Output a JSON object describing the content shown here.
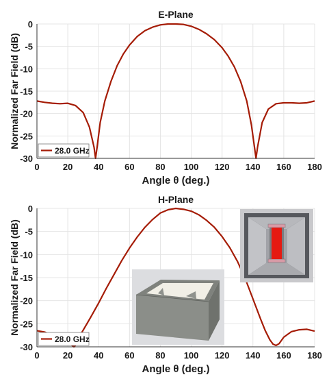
{
  "chart_data": [
    {
      "type": "line",
      "title": "E-Plane",
      "xlabel": "Angle θ (deg.)",
      "ylabel": "Normalized Far Field (dB)",
      "xlim": [
        0,
        180
      ],
      "ylim": [
        -30,
        0
      ],
      "xticks": [
        0,
        20,
        40,
        60,
        80,
        100,
        120,
        140,
        160,
        180
      ],
      "yticks": [
        0,
        -5,
        -10,
        -15,
        -20,
        -25,
        -30
      ],
      "grid": true,
      "legend": "bottom-left",
      "series": [
        {
          "name": "28.0 GHz",
          "color": "#a51c06",
          "x": [
            0,
            5,
            10,
            15,
            20,
            25,
            30,
            34,
            37,
            38,
            39,
            41,
            44,
            48,
            52,
            56,
            60,
            65,
            70,
            75,
            80,
            85,
            90,
            95,
            100,
            105,
            110,
            115,
            120,
            124,
            128,
            132,
            136,
            139,
            141,
            142,
            143,
            146,
            150,
            155,
            160,
            165,
            170,
            175,
            180
          ],
          "y": [
            -17.2,
            -17.5,
            -17.7,
            -17.8,
            -17.7,
            -18.2,
            -19.8,
            -23,
            -27.5,
            -30,
            -27.5,
            -22,
            -17.2,
            -12.8,
            -9.3,
            -6.7,
            -4.7,
            -2.8,
            -1.5,
            -0.7,
            -0.2,
            0,
            0,
            -0.1,
            -0.5,
            -1.2,
            -2.2,
            -3.5,
            -5.3,
            -7.2,
            -9.6,
            -12.8,
            -17.2,
            -22.5,
            -27.5,
            -30,
            -27.5,
            -22,
            -19,
            -17.8,
            -17.6,
            -17.6,
            -17.7,
            -17.6,
            -17.2
          ]
        }
      ]
    },
    {
      "type": "line",
      "title": "H-Plane",
      "xlabel": "Angle θ (deg.)",
      "ylabel": "Normalized Far Field (dB)",
      "xlim": [
        0,
        180
      ],
      "ylim": [
        -30,
        0
      ],
      "xticks": [
        0,
        20,
        40,
        60,
        80,
        100,
        120,
        140,
        160,
        180
      ],
      "yticks": [
        0,
        -5,
        -10,
        -15,
        -20,
        -25,
        -30
      ],
      "grid": true,
      "legend": "bottom-left",
      "series": [
        {
          "name": "28.0 GHz",
          "color": "#a51c06",
          "x": [
            0,
            5,
            10,
            15,
            20,
            22,
            24,
            26,
            28,
            31,
            35,
            40,
            45,
            50,
            55,
            60,
            65,
            70,
            75,
            80,
            85,
            90,
            95,
            100,
            105,
            110,
            115,
            120,
            125,
            130,
            135,
            140,
            145,
            148,
            151,
            153,
            155,
            157,
            160,
            165,
            170,
            175,
            180
          ],
          "y": [
            -26.5,
            -26.8,
            -27.5,
            -28.2,
            -29.3,
            -29.5,
            -30,
            -29.3,
            -27.5,
            -25.8,
            -23.5,
            -20.5,
            -17.3,
            -14.3,
            -11.3,
            -8.6,
            -6.2,
            -4.1,
            -2.4,
            -1.0,
            -0.3,
            0,
            -0.2,
            -0.6,
            -1.4,
            -2.6,
            -4.1,
            -6.1,
            -8.5,
            -11.5,
            -15.2,
            -19.6,
            -24,
            -26.5,
            -28.5,
            -29.4,
            -29.7,
            -29.3,
            -27.9,
            -26.7,
            -26.3,
            -26.2,
            -26.6
          ]
        }
      ]
    }
  ],
  "colors": {
    "curve": "#a51c06",
    "grid": "#e4e4e4",
    "axis": "#333333",
    "text": "#1a1a1a"
  },
  "insets": [
    {
      "name": "antenna-top-view",
      "colors": {
        "frame": "#9ea0a6",
        "slot": "#e51a12",
        "flare": "#b4b5ba"
      }
    },
    {
      "name": "antenna-3d-view",
      "colors": {
        "body": "#8b8e89",
        "interior": "#f1efe6"
      }
    }
  ]
}
